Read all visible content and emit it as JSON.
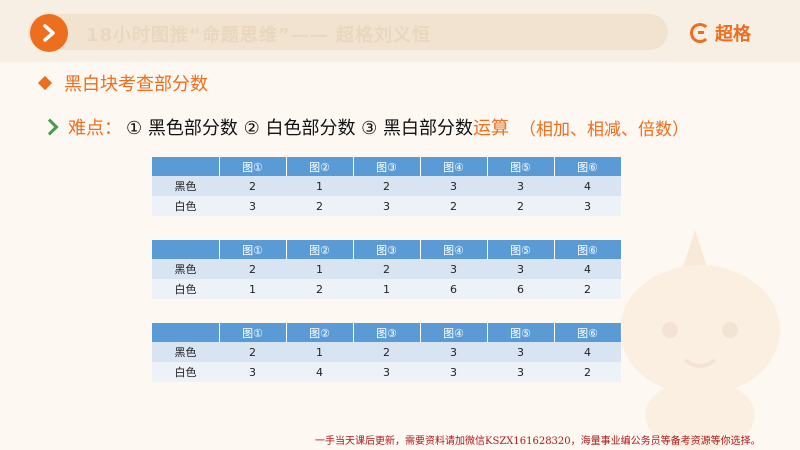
{
  "header": {
    "title": "18小时图推“命题思维”—— 超格刘义恒",
    "brand": "超格"
  },
  "section_title": "黑白块考查部分数",
  "difficulty": {
    "label": "难点：",
    "items": "① 黑色部分数 ② 白色部分数 ③ 黑白部分数",
    "suffix": "运算",
    "paren": "（相加、相减、倍数）"
  },
  "tables": [
    {
      "headers": [
        "",
        "图①",
        "图②",
        "图③",
        "图④",
        "图⑤",
        "图⑥"
      ],
      "rows": [
        [
          "黑色",
          "2",
          "1",
          "2",
          "3",
          "3",
          "4"
        ],
        [
          "白色",
          "3",
          "2",
          "3",
          "2",
          "2",
          "3"
        ]
      ]
    },
    {
      "headers": [
        "",
        "图①",
        "图②",
        "图③",
        "图④",
        "图⑤",
        "图⑥"
      ],
      "rows": [
        [
          "黑色",
          "2",
          "1",
          "2",
          "3",
          "3",
          "4"
        ],
        [
          "白色",
          "1",
          "2",
          "1",
          "6",
          "6",
          "2"
        ]
      ]
    },
    {
      "headers": [
        "",
        "图①",
        "图②",
        "图③",
        "图④",
        "图⑤",
        "图⑥"
      ],
      "rows": [
        [
          "黑色",
          "2",
          "1",
          "2",
          "3",
          "3",
          "4"
        ],
        [
          "白色",
          "3",
          "4",
          "3",
          "3",
          "3",
          "2"
        ]
      ]
    }
  ],
  "footer_note": "一手当天课后更新，需要资料请加微信KSZX161628320，海量事业编公务员等备考资源等你选择。",
  "colors": {
    "accent": "#ee6e1f",
    "table_header": "#5b9bd5",
    "row_dark": "#d9e4f2",
    "row_light": "#edf2f9"
  }
}
